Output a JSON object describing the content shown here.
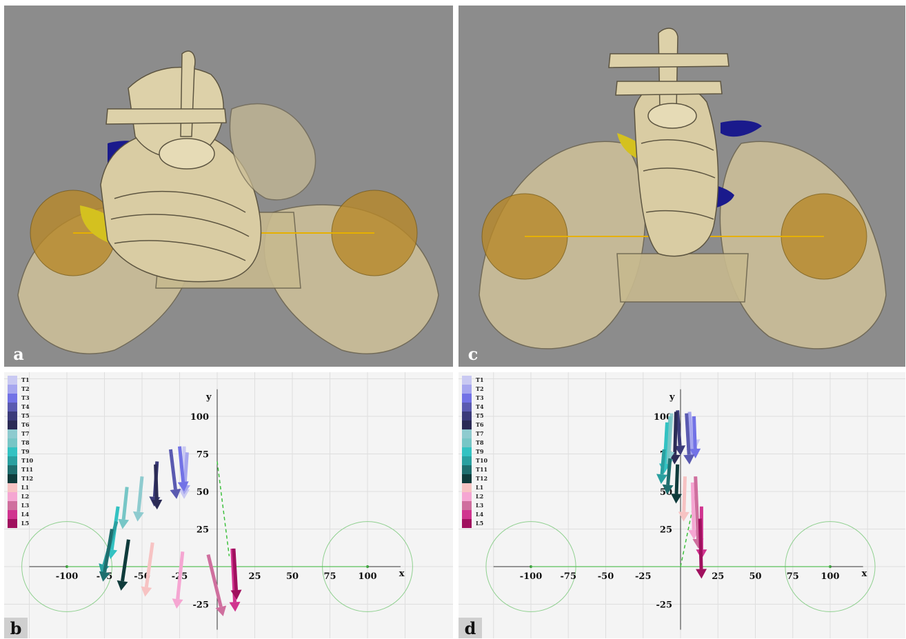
{
  "panels": {
    "a": {
      "label": "a"
    },
    "b": {
      "label": "b"
    },
    "c": {
      "label": "c"
    },
    "d": {
      "label": "d"
    }
  },
  "chart_data": [
    {
      "panel": "b",
      "type": "scatter",
      "title": "",
      "xlabel": "x",
      "ylabel": "y",
      "xlim": [
        -125,
        125
      ],
      "ylim": [
        -40,
        115
      ],
      "x_ticks": [
        "-100",
        "-75",
        "-50",
        "-25",
        "25",
        "50",
        "75",
        "100"
      ],
      "y_ticks": [
        "100",
        "75",
        "50",
        "25",
        "-25"
      ],
      "grid": true,
      "legend_position": "top-left",
      "hip_circles": [
        {
          "cx": -100,
          "cy": 0,
          "r": 30
        },
        {
          "cx": 100,
          "cy": 0,
          "r": 30
        }
      ],
      "plumb_line": {
        "from": [
          0,
          70
        ],
        "to": [
          8,
          7
        ]
      },
      "series": [
        {
          "name": "T1",
          "color": "#c9c9f2",
          "x0": -22,
          "y0": 80,
          "x1": -22,
          "y1": 45
        },
        {
          "name": "T2",
          "color": "#a6a6ef",
          "x0": -20,
          "y0": 76,
          "x1": -22,
          "y1": 48
        },
        {
          "name": "T3",
          "color": "#7272e6",
          "x0": -25,
          "y0": 80,
          "x1": -22,
          "y1": 50
        },
        {
          "name": "T4",
          "color": "#5a5ab0",
          "x0": -31,
          "y0": 78,
          "x1": -27,
          "y1": 45
        },
        {
          "name": "T5",
          "color": "#3b3b7a",
          "x0": -40,
          "y0": 70,
          "x1": -42,
          "y1": 40
        },
        {
          "name": "T6",
          "color": "#2b2b55",
          "x0": -41,
          "y0": 68,
          "x1": -40,
          "y1": 38
        },
        {
          "name": "T7",
          "color": "#8ecbcf",
          "x0": -50,
          "y0": 60,
          "x1": -53,
          "y1": 30
        },
        {
          "name": "T8",
          "color": "#77c6c6",
          "x0": -60,
          "y0": 53,
          "x1": -63,
          "y1": 25
        },
        {
          "name": "T9",
          "color": "#33c2c2",
          "x0": -66,
          "y0": 40,
          "x1": -71,
          "y1": 5
        },
        {
          "name": "T10",
          "color": "#2aa0a0",
          "x0": -67,
          "y0": 30,
          "x1": -77,
          "y1": -5
        },
        {
          "name": "T11",
          "color": "#1f6e6e",
          "x0": -70,
          "y0": 25,
          "x1": -76,
          "y1": -10
        },
        {
          "name": "T12",
          "color": "#0f3b3b",
          "x0": -59,
          "y0": 18,
          "x1": -64,
          "y1": -16
        },
        {
          "name": "L1",
          "color": "#f7c3c3",
          "x0": -43,
          "y0": 16,
          "x1": -48,
          "y1": -20
        },
        {
          "name": "L2",
          "color": "#f5a6d2",
          "x0": -23,
          "y0": 10,
          "x1": -27,
          "y1": -28
        },
        {
          "name": "L3",
          "color": "#cf6f9e",
          "x0": -6,
          "y0": 8,
          "x1": 4,
          "y1": -33
        },
        {
          "name": "L4",
          "color": "#d0348f",
          "x0": 10,
          "y0": 12,
          "x1": 12,
          "y1": -30
        },
        {
          "name": "L5",
          "color": "#a0105e",
          "x0": 11,
          "y0": 12,
          "x1": 13,
          "y1": -22
        }
      ]
    },
    {
      "panel": "d",
      "type": "scatter",
      "title": "",
      "xlabel": "x",
      "ylabel": "y",
      "xlim": [
        -125,
        125
      ],
      "ylim": [
        -40,
        115
      ],
      "x_ticks": [
        "-100",
        "-75",
        "-50",
        "-25",
        "25",
        "50",
        "75",
        "100"
      ],
      "y_ticks": [
        "100",
        "75",
        "50",
        "25",
        "-25"
      ],
      "grid": true,
      "legend_position": "top-left",
      "hip_circles": [
        {
          "cx": -100,
          "cy": 0,
          "r": 30
        },
        {
          "cx": 100,
          "cy": 0,
          "r": 30
        }
      ],
      "plumb_line": {
        "from": [
          0,
          0
        ],
        "to": [
          10,
          48
        ]
      },
      "series": [
        {
          "name": "T1",
          "color": "#c9c9f2",
          "x0": 8,
          "y0": 100,
          "x1": 10,
          "y1": 78
        },
        {
          "name": "T2",
          "color": "#a6a6ef",
          "x0": 6,
          "y0": 103,
          "x1": 8,
          "y1": 72
        },
        {
          "name": "T3",
          "color": "#7272e6",
          "x0": 9,
          "y0": 100,
          "x1": 10,
          "y1": 72
        },
        {
          "name": "T4",
          "color": "#5a5ab0",
          "x0": 4,
          "y0": 102,
          "x1": 6,
          "y1": 68
        },
        {
          "name": "T5",
          "color": "#3b3b7a",
          "x0": -2,
          "y0": 104,
          "x1": 0,
          "y1": 74
        },
        {
          "name": "T6",
          "color": "#2b2b55",
          "x0": -3,
          "y0": 103,
          "x1": -4,
          "y1": 68
        },
        {
          "name": "T7",
          "color": "#8ecbcf",
          "x0": -6,
          "y0": 102,
          "x1": -8,
          "y1": 70
        },
        {
          "name": "T8",
          "color": "#77c6c6",
          "x0": -7,
          "y0": 100,
          "x1": -9,
          "y1": 65
        },
        {
          "name": "T9",
          "color": "#33c2c2",
          "x0": -9,
          "y0": 96,
          "x1": -11,
          "y1": 62
        },
        {
          "name": "T10",
          "color": "#2aa0a0",
          "x0": -11,
          "y0": 78,
          "x1": -13,
          "y1": 55
        },
        {
          "name": "T11",
          "color": "#1f6e6e",
          "x0": -7,
          "y0": 72,
          "x1": -9,
          "y1": 48
        },
        {
          "name": "T12",
          "color": "#0f3b3b",
          "x0": -2,
          "y0": 68,
          "x1": -3,
          "y1": 42
        },
        {
          "name": "L1",
          "color": "#f7c3c3",
          "x0": 3,
          "y0": 60,
          "x1": 2,
          "y1": 30
        },
        {
          "name": "L2",
          "color": "#f5a6d2",
          "x0": 8,
          "y0": 56,
          "x1": 9,
          "y1": 18
        },
        {
          "name": "L3",
          "color": "#cf6f9e",
          "x0": 10,
          "y0": 60,
          "x1": 12,
          "y1": 12
        },
        {
          "name": "L4",
          "color": "#d0348f",
          "x0": 14,
          "y0": 40,
          "x1": 14,
          "y1": 5
        },
        {
          "name": "L5",
          "color": "#a0105e",
          "x0": 13,
          "y0": 32,
          "x1": 14,
          "y1": -8
        }
      ]
    }
  ]
}
